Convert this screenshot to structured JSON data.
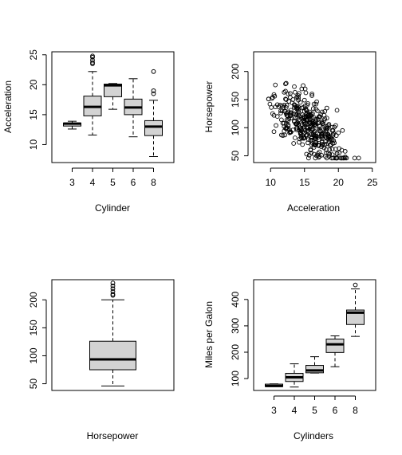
{
  "chart_data": [
    {
      "type": "boxplot",
      "title": "",
      "xlabel": "Cylinder",
      "ylabel": "Acceleration",
      "categories": [
        "3",
        "4",
        "5",
        "6",
        "8"
      ],
      "ylim": [
        7,
        25.5
      ],
      "yticks": [
        10,
        15,
        20,
        25
      ],
      "boxes": [
        {
          "category": "3",
          "whisker_low": 12.6,
          "q1": 13.1,
          "median": 13.5,
          "q3": 13.6,
          "whisker_high": 13.9,
          "outliers": []
        },
        {
          "category": "4",
          "whisker_low": 11.6,
          "q1": 14.8,
          "median": 16.3,
          "q3": 18.1,
          "whisker_high": 22.2,
          "outliers": [
            23.5,
            23.7,
            24.1,
            24.6,
            24.8
          ]
        },
        {
          "category": "5",
          "whisker_low": 15.9,
          "q1": 18.0,
          "median": 19.9,
          "q3": 20.1,
          "whisker_high": 20.2,
          "outliers": []
        },
        {
          "category": "6",
          "whisker_low": 11.3,
          "q1": 15.0,
          "median": 16.2,
          "q3": 17.6,
          "whisker_high": 21.0,
          "outliers": []
        },
        {
          "category": "8",
          "whisker_low": 8.0,
          "q1": 11.5,
          "median": 13.0,
          "q3": 14.0,
          "whisker_high": 17.4,
          "outliers": [
            18.5,
            19.0,
            22.2
          ]
        }
      ]
    },
    {
      "type": "scatter",
      "title": "",
      "xlabel": "Acceleration",
      "ylabel": "Horsepower",
      "xlim": [
        7.5,
        25.5
      ],
      "ylim": [
        38,
        235
      ],
      "xticks": [
        10,
        15,
        20,
        25
      ],
      "yticks": [
        50,
        100,
        150,
        200
      ],
      "points_x": [],
      "points_y": []
    },
    {
      "type": "boxplot",
      "title": "",
      "xlabel": "Horsepower",
      "ylabel": "",
      "categories": [
        ""
      ],
      "ylim": [
        38,
        236
      ],
      "yticks": [
        50,
        100,
        150,
        200
      ],
      "boxes": [
        {
          "category": "",
          "whisker_low": 46,
          "q1": 75,
          "median": 93.5,
          "q3": 126,
          "whisker_high": 200,
          "outliers": [
            208,
            210,
            215,
            220,
            225,
            230
          ]
        }
      ]
    },
    {
      "type": "boxplot",
      "title": "",
      "xlabel": "Cylinders",
      "ylabel": "Miles per Galon",
      "categories": [
        "3",
        "4",
        "5",
        "6",
        "8"
      ],
      "ylim": [
        55,
        475
      ],
      "yticks": [
        100,
        200,
        300,
        400
      ],
      "boxes": [
        {
          "category": "3",
          "whisker_low": 70,
          "q1": 70,
          "median": 72,
          "q3": 79,
          "whisker_high": 80,
          "outliers": []
        },
        {
          "category": "4",
          "whisker_low": 68,
          "q1": 89,
          "median": 105,
          "q3": 120,
          "whisker_high": 156,
          "outliers": []
        },
        {
          "category": "5",
          "whisker_low": 121,
          "q1": 122,
          "median": 131,
          "q3": 150,
          "whisker_high": 183,
          "outliers": []
        },
        {
          "category": "6",
          "whisker_low": 145,
          "q1": 199,
          "median": 230,
          "q3": 250,
          "whisker_high": 262,
          "outliers": []
        },
        {
          "category": "8",
          "whisker_low": 260,
          "q1": 305,
          "median": 350,
          "q3": 360,
          "whisker_high": 440,
          "outliers": [
            455
          ]
        }
      ]
    }
  ]
}
